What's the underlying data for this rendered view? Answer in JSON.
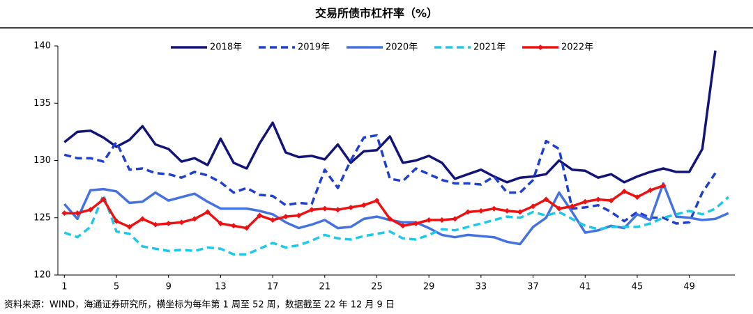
{
  "chart_data": {
    "type": "line",
    "title": "交易所债市杠杆率（%）",
    "footnote": "资料来源：WIND，海通证券研究所，横坐标为每年第 1 周至 52 周，数据截至 22 年 12 月 9 日",
    "x": [
      1,
      2,
      3,
      4,
      5,
      6,
      7,
      8,
      9,
      10,
      11,
      12,
      13,
      14,
      15,
      16,
      17,
      18,
      19,
      20,
      21,
      22,
      23,
      24,
      25,
      26,
      27,
      28,
      29,
      30,
      31,
      32,
      33,
      34,
      35,
      36,
      37,
      38,
      39,
      40,
      41,
      42,
      43,
      44,
      45,
      46,
      47,
      48,
      49,
      50,
      51,
      52
    ],
    "xlim": [
      0.5,
      52.5
    ],
    "xticks": [
      1,
      5,
      9,
      13,
      17,
      21,
      25,
      29,
      33,
      37,
      41,
      45,
      49
    ],
    "ylim": [
      120,
      140
    ],
    "yticks": [
      120,
      125,
      130,
      135,
      140
    ],
    "legend": "top",
    "series": [
      {
        "name": "2018年",
        "color": "#12147a",
        "dash": false,
        "values": [
          131.6,
          132.5,
          132.6,
          132.0,
          131.2,
          131.8,
          133.0,
          131.4,
          131.0,
          129.9,
          130.2,
          129.6,
          131.9,
          129.8,
          129.3,
          131.5,
          133.3,
          130.7,
          130.3,
          130.4,
          130.1,
          131.4,
          129.8,
          130.8,
          130.9,
          132.1,
          129.8,
          130.0,
          130.4,
          129.8,
          128.4,
          128.8,
          129.2,
          128.6,
          128.1,
          128.5,
          128.6,
          128.8,
          130.0,
          129.2,
          129.1,
          128.5,
          128.8,
          128.1,
          128.6,
          129.0,
          129.3,
          129.0,
          129.0,
          131.0,
          139.6,
          null
        ]
      },
      {
        "name": "2019年",
        "color": "#1f3fd0",
        "dash": true,
        "values": [
          130.5,
          130.2,
          130.2,
          129.9,
          131.6,
          129.2,
          129.3,
          128.9,
          128.8,
          128.5,
          129.0,
          128.7,
          128.1,
          127.2,
          127.6,
          127.0,
          126.9,
          126.1,
          126.3,
          126.2,
          129.2,
          127.6,
          130.0,
          132.0,
          132.2,
          128.4,
          128.2,
          129.3,
          128.8,
          128.3,
          128.0,
          128.0,
          127.9,
          128.6,
          127.2,
          127.2,
          128.3,
          131.7,
          131.0,
          125.8,
          125.9,
          126.1,
          125.5,
          124.7,
          125.5,
          125.0,
          125.0,
          124.5,
          124.6,
          127.2,
          128.9,
          null
        ]
      },
      {
        "name": "2020年",
        "color": "#4472e0",
        "dash": false,
        "values": [
          126.2,
          124.9,
          127.4,
          127.5,
          127.3,
          126.3,
          126.4,
          127.2,
          126.5,
          126.8,
          127.1,
          126.4,
          125.8,
          125.8,
          125.8,
          125.6,
          125.3,
          124.6,
          124.1,
          124.4,
          124.8,
          124.1,
          124.2,
          124.9,
          125.1,
          124.8,
          124.6,
          124.6,
          124.1,
          123.5,
          123.3,
          123.5,
          123.4,
          123.3,
          122.9,
          122.7,
          124.2,
          125.0,
          127.2,
          125.5,
          123.7,
          123.9,
          124.3,
          124.1,
          125.3,
          124.8,
          128.0,
          125.1,
          125.0,
          124.8,
          124.9,
          125.4
        ]
      },
      {
        "name": "2021年",
        "color": "#1ec8e8",
        "dash": true,
        "values": [
          123.7,
          123.3,
          124.2,
          127.0,
          123.8,
          123.6,
          122.5,
          122.3,
          122.1,
          122.2,
          122.1,
          122.4,
          122.3,
          121.8,
          121.8,
          122.3,
          122.8,
          122.4,
          122.6,
          123.0,
          123.5,
          123.2,
          123.1,
          123.4,
          123.6,
          123.8,
          123.2,
          123.1,
          123.5,
          124.0,
          123.9,
          124.2,
          124.5,
          124.8,
          125.1,
          125.0,
          125.5,
          125.2,
          125.5,
          124.9,
          124.3,
          124.0,
          124.2,
          124.2,
          124.2,
          124.5,
          125.0,
          125.3,
          125.6,
          125.3,
          125.8,
          126.8
        ]
      },
      {
        "name": "2022年",
        "color": "#ee1111",
        "dash": false,
        "marker": "diamond",
        "values": [
          125.4,
          125.4,
          125.7,
          126.6,
          124.7,
          124.2,
          124.9,
          124.4,
          124.5,
          124.6,
          124.9,
          125.5,
          124.5,
          124.3,
          124.1,
          125.2,
          124.8,
          125.1,
          125.2,
          125.7,
          125.8,
          125.7,
          125.9,
          126.1,
          126.5,
          124.9,
          124.3,
          124.5,
          124.8,
          124.8,
          124.9,
          125.5,
          125.6,
          125.8,
          125.6,
          125.5,
          126.0,
          126.6,
          125.8,
          126.0,
          126.4,
          126.6,
          126.5,
          127.3,
          126.8,
          127.4,
          127.8,
          null,
          null,
          null,
          null,
          null
        ]
      }
    ]
  }
}
